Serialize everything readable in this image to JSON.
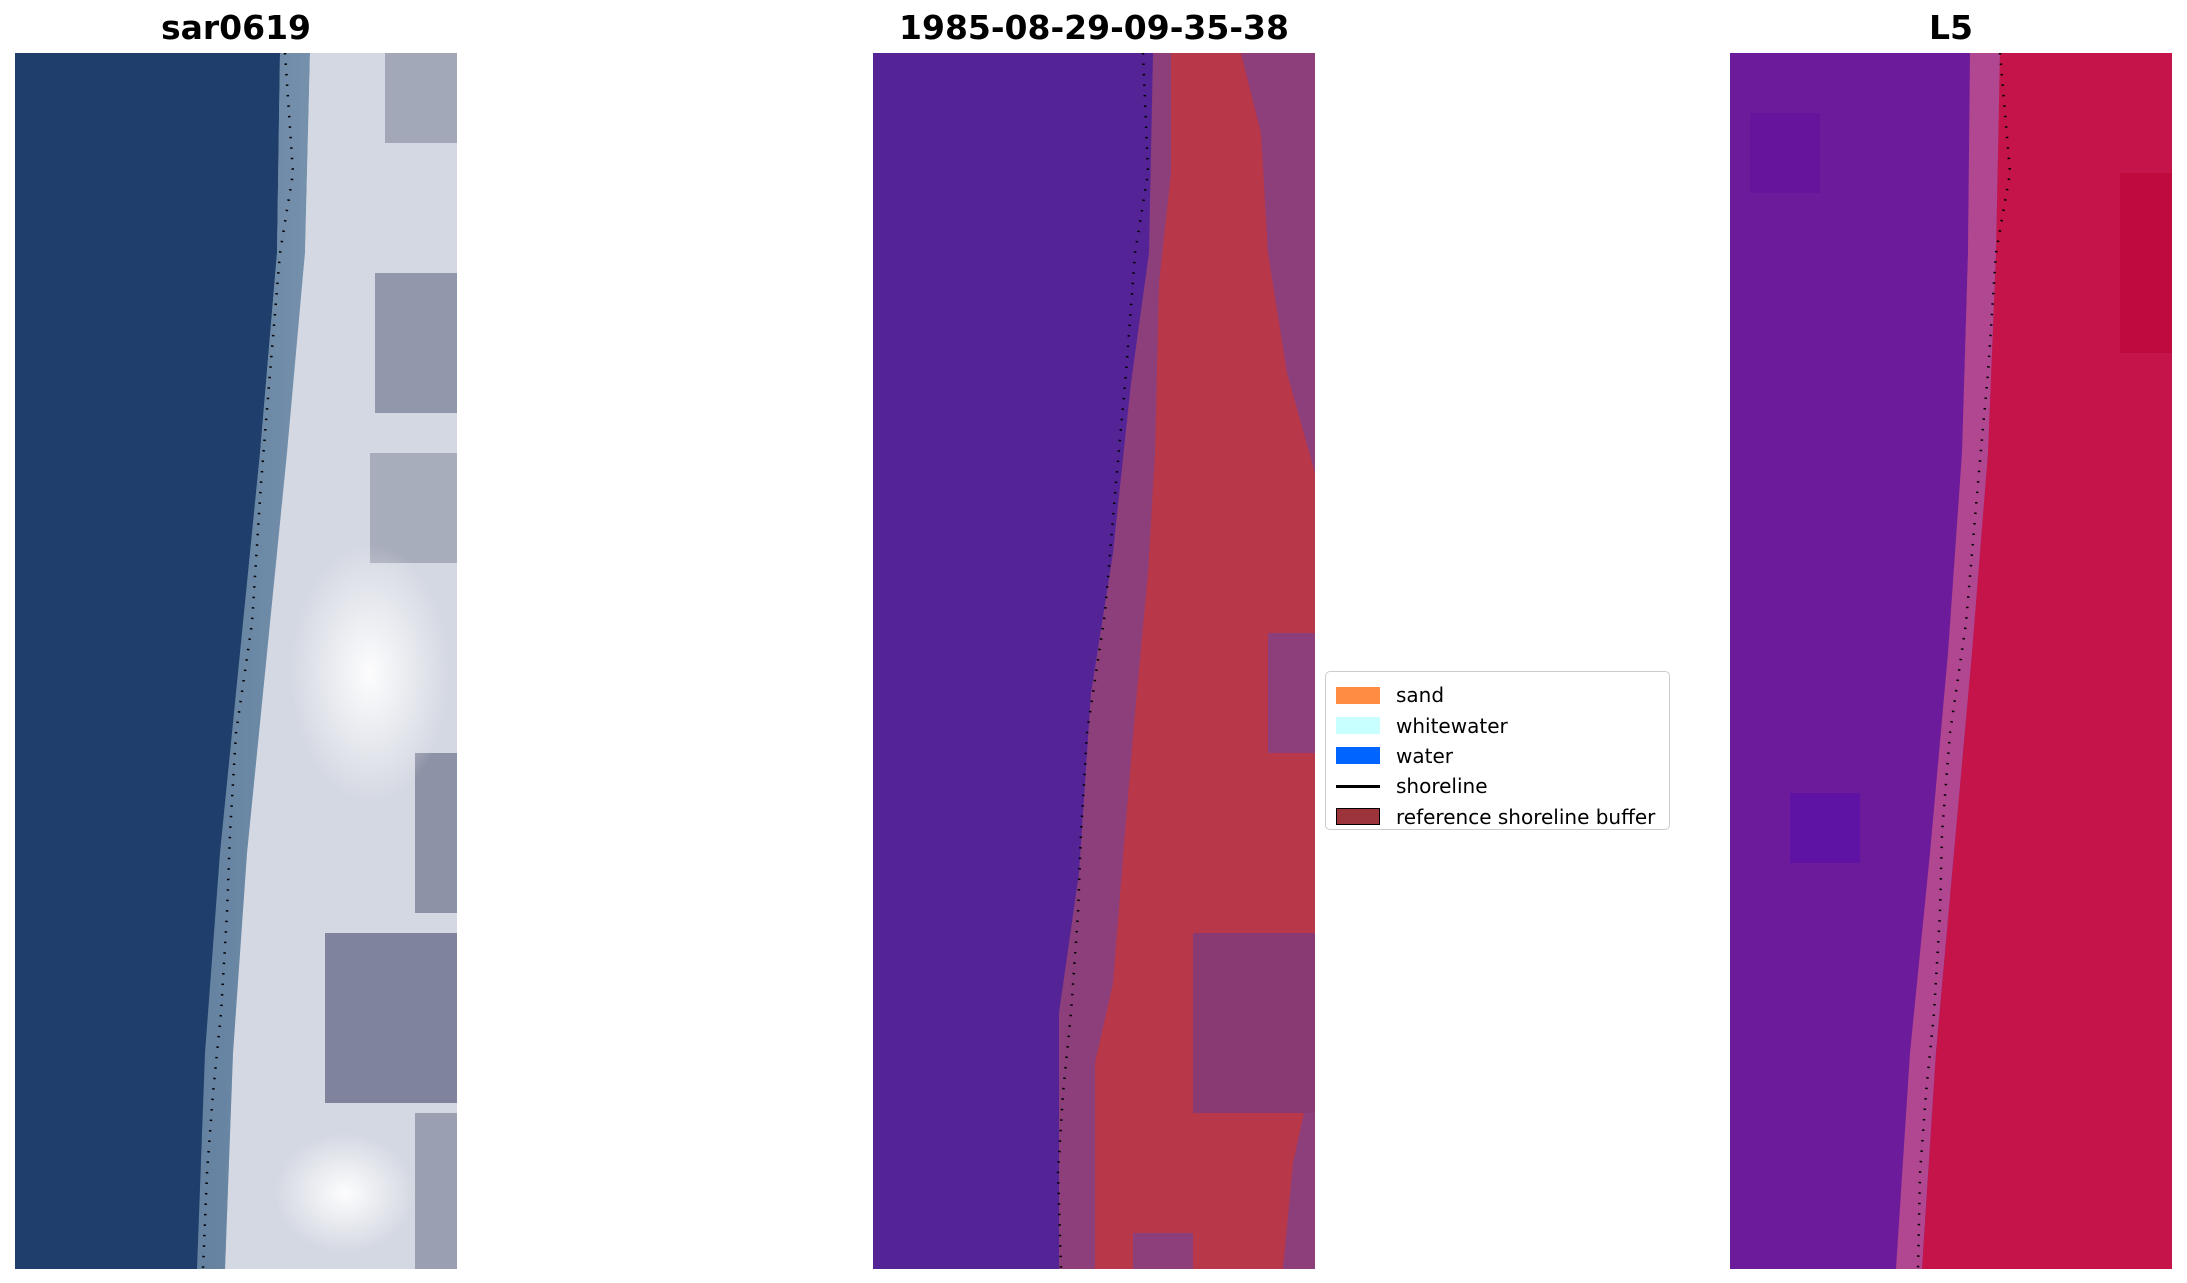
{
  "panels": [
    {
      "title": "sar0619"
    },
    {
      "title": "1985-08-29-09-35-38"
    },
    {
      "title": "L5"
    }
  ],
  "legend": {
    "items": [
      {
        "label": "sand",
        "color": "#ff8c42",
        "kind": "patch"
      },
      {
        "label": "whitewater",
        "color": "#c8ffff",
        "kind": "patch"
      },
      {
        "label": "water",
        "color": "#0064ff",
        "kind": "patch"
      },
      {
        "label": "shoreline",
        "color": "#000000",
        "kind": "line"
      },
      {
        "label": "reference shoreline buffer",
        "color": "#9b343b",
        "kind": "outlined"
      }
    ]
  },
  "colors": {
    "rgb_water": "#1e3e6a",
    "rgb_sand": "#d2d6e0",
    "class_water": "#542497",
    "class_sand": "#b8384a",
    "class_mixed": "#8c3e7a",
    "index_water": "#6a1c9c",
    "index_land": "#c0103c",
    "shoreline": "#000000"
  }
}
